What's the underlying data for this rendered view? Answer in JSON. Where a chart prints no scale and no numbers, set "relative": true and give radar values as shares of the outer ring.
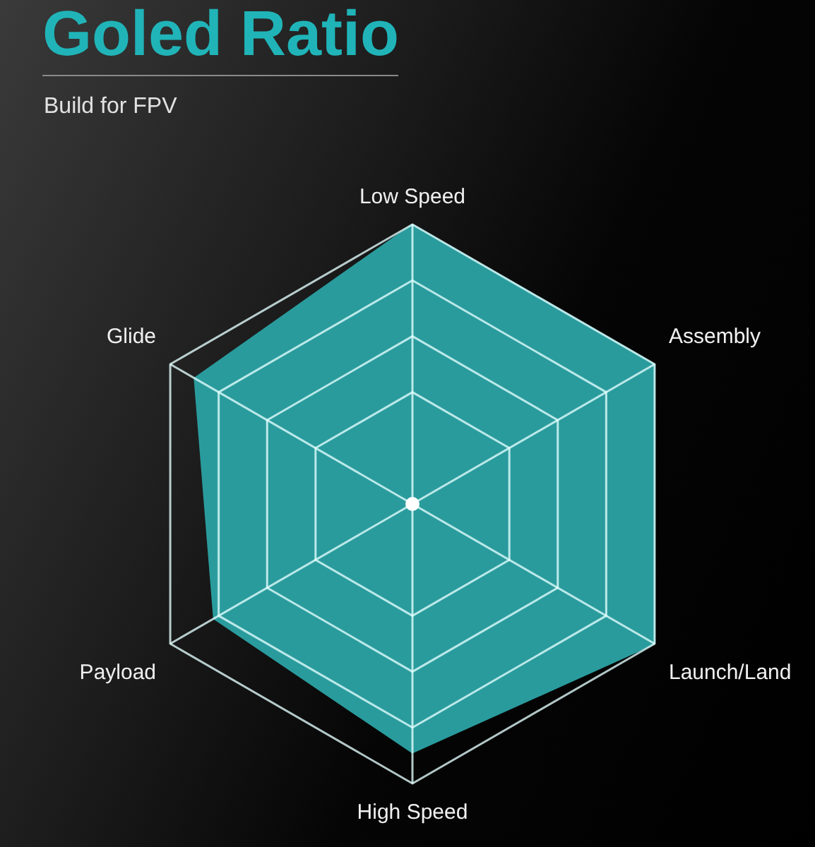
{
  "chart_data": {
    "type": "radar",
    "title": "Goled Ratio",
    "subtitle": "Build for FPV",
    "categories": [
      "Low Speed",
      "Assembly",
      "Launch/Land",
      "High Speed",
      "Payload",
      "Glide"
    ],
    "relative": true,
    "grid": true,
    "series": [
      {
        "color": "#2a9b9d",
        "values": [
          1,
          1,
          1,
          0.89,
          0.82,
          0.9
        ]
      }
    ]
  }
}
